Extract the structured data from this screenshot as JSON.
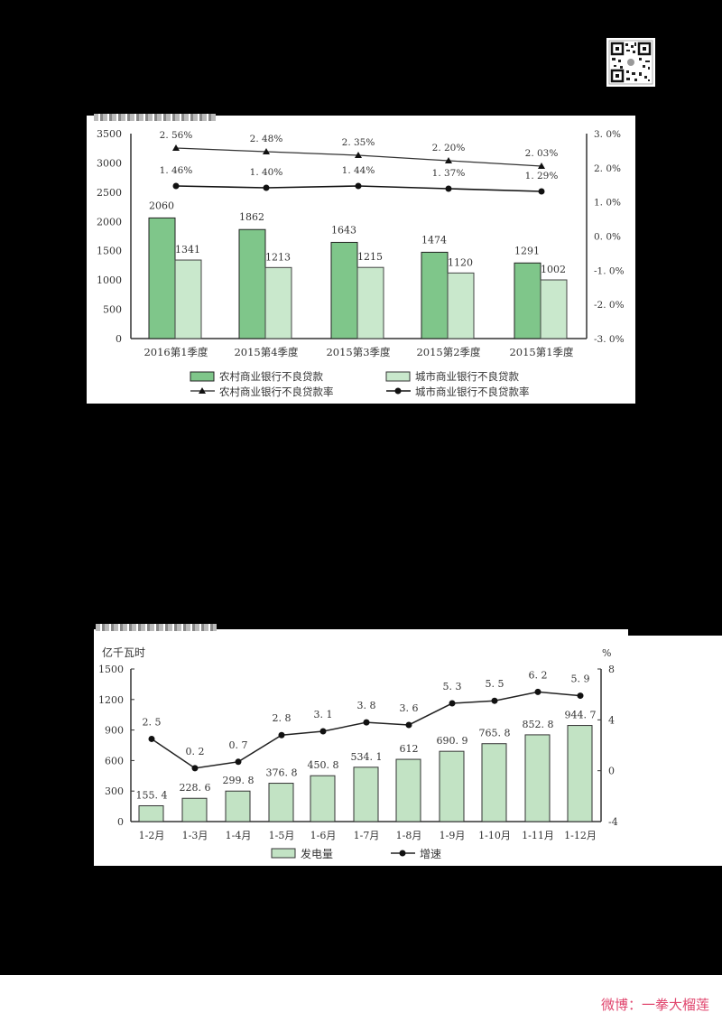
{
  "watermark": "微博：一拳大榴莲",
  "qr_code": "qr-code",
  "chart_data": [
    {
      "type": "bar+line",
      "title": "",
      "categories": [
        "2016第1季度",
        "2015第4季度",
        "2015第3季度",
        "2015第2季度",
        "2015第1季度"
      ],
      "series": [
        {
          "name": "农村商业银行不良贷款",
          "type": "bar",
          "axis": "left",
          "color": "#7fc68a",
          "values": [
            2060,
            1862,
            1643,
            1474,
            1291
          ]
        },
        {
          "name": "城市商业银行不良贷款",
          "type": "bar",
          "axis": "left",
          "color": "#c9e8cc",
          "values": [
            1341,
            1213,
            1215,
            1120,
            1002
          ]
        },
        {
          "name": "农村商业银行不良贷款率",
          "type": "line",
          "marker": "triangle",
          "axis": "right",
          "values": [
            2.56,
            2.48,
            2.35,
            2.2,
            2.03
          ],
          "labels": [
            "2.56%",
            "2.48%",
            "2.35%",
            "2.20%",
            "2.03%"
          ]
        },
        {
          "name": "城市商业银行不良贷款率",
          "type": "line",
          "marker": "circle",
          "axis": "right",
          "values": [
            1.46,
            1.4,
            1.44,
            1.37,
            1.29
          ],
          "labels": [
            "1.46%",
            "1.40%",
            "1.44%",
            "1.37%",
            "1.29%"
          ]
        }
      ],
      "left_axis": {
        "ylim": [
          0,
          3500
        ],
        "ticks": [
          "0",
          "500",
          "1000",
          "1500",
          "2000",
          "2500",
          "3000",
          "3500"
        ]
      },
      "right_axis": {
        "ylim": [
          -3.0,
          3.0
        ],
        "ticks": [
          "-3.0%",
          "-2.0%",
          "-1.0%",
          "0.0%",
          "1.0%",
          "2.0%",
          "3.0%"
        ]
      },
      "legend_position": "bottom",
      "grid": false
    },
    {
      "type": "bar+line",
      "title": "",
      "ylabel": "亿千瓦时",
      "y2label": "%",
      "categories": [
        "1-2月",
        "1-3月",
        "1-4月",
        "1-5月",
        "1-6月",
        "1-7月",
        "1-8月",
        "1-9月",
        "1-10月",
        "1-11月",
        "1-12月"
      ],
      "series": [
        {
          "name": "发电量",
          "type": "bar",
          "axis": "left",
          "color": "#c2e3c4",
          "values": [
            155.4,
            228.6,
            299.8,
            376.8,
            450.8,
            534.1,
            612,
            690.9,
            765.8,
            852.8,
            944.7
          ],
          "labels": [
            "155.4",
            "228.6",
            "299.8",
            "376.8",
            "450.8",
            "534.1",
            "612",
            "690.9",
            "765.8",
            "852.8",
            "944.7"
          ]
        },
        {
          "name": "增速",
          "type": "line",
          "marker": "circle",
          "axis": "right",
          "values": [
            2.5,
            0.2,
            0.7,
            2.8,
            3.1,
            3.8,
            3.6,
            5.3,
            5.5,
            6.2,
            5.9
          ],
          "labels": [
            "2.5",
            "0.2",
            "0.7",
            "2.8",
            "3.1",
            "3.8",
            "3.6",
            "5.3",
            "5.5",
            "6.2",
            "5.9"
          ]
        }
      ],
      "left_axis": {
        "ylim": [
          0,
          1500
        ],
        "ticks": [
          "0",
          "300",
          "600",
          "900",
          "1200",
          "1500"
        ]
      },
      "right_axis": {
        "ylim": [
          -4,
          8
        ],
        "ticks": [
          "-4",
          "0",
          "4",
          "8"
        ]
      },
      "legend_position": "bottom",
      "grid": false
    }
  ]
}
